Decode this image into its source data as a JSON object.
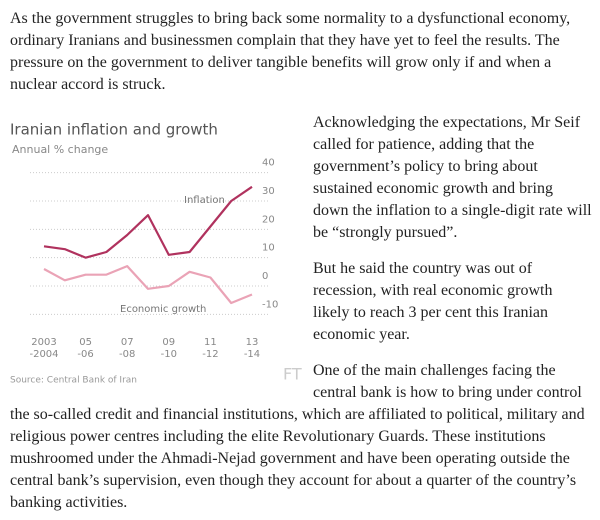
{
  "paragraphs": [
    "As the government struggles to bring back some normality to a dysfunctional economy, ordinary Iranians and businessmen complain that they have yet to feel the results. The pressure on the government to deliver tangible benefits will grow only if and when a nuclear accord is struck.",
    "Acknowledging the expectations, Mr Seif called for patience, adding that the government’s policy to bring about sustained economic growth and bring down the inflation to a single-digit rate will be “strongly pursued”.",
    "But he said the country was out of recession, with real economic growth likely to reach 3 per cent this Iranian economic year.",
    "One of the main challenges facing the central bank is how to bring under control the so-called credit and financial institutions, which are affiliated to political, military and religious power centres including the elite Revolutionary Guards. These institutions mushroomed under the Ahmadi-Nejad government and have been operating outside the central bank’s supervision, even though they account for about a quarter of the country’s banking activities."
  ],
  "chart_data": {
    "type": "line",
    "title": "Iranian inflation and growth",
    "subtitle": "Annual % change",
    "source": "Source: Central Bank of Iran",
    "watermark": "FT",
    "categories": [
      "2003\n-2004",
      null,
      "05\n-06",
      null,
      "07\n-08",
      null,
      "09\n-10",
      null,
      "11\n-12",
      null,
      "13\n-14"
    ],
    "series": [
      {
        "name": "Inflation",
        "color": "#b0325e",
        "values": [
          14,
          13,
          10,
          12,
          18,
          25,
          11,
          12,
          21,
          30,
          35
        ]
      },
      {
        "name": "Economic growth",
        "color": "#eaa3b6",
        "values": [
          6,
          2,
          4,
          4,
          7,
          -1,
          0,
          5,
          3,
          -6,
          -3
        ]
      }
    ],
    "ylim": [
      -12,
      42
    ],
    "yticks": [
      -10,
      0,
      10,
      20,
      30,
      40
    ],
    "grid": true
  }
}
